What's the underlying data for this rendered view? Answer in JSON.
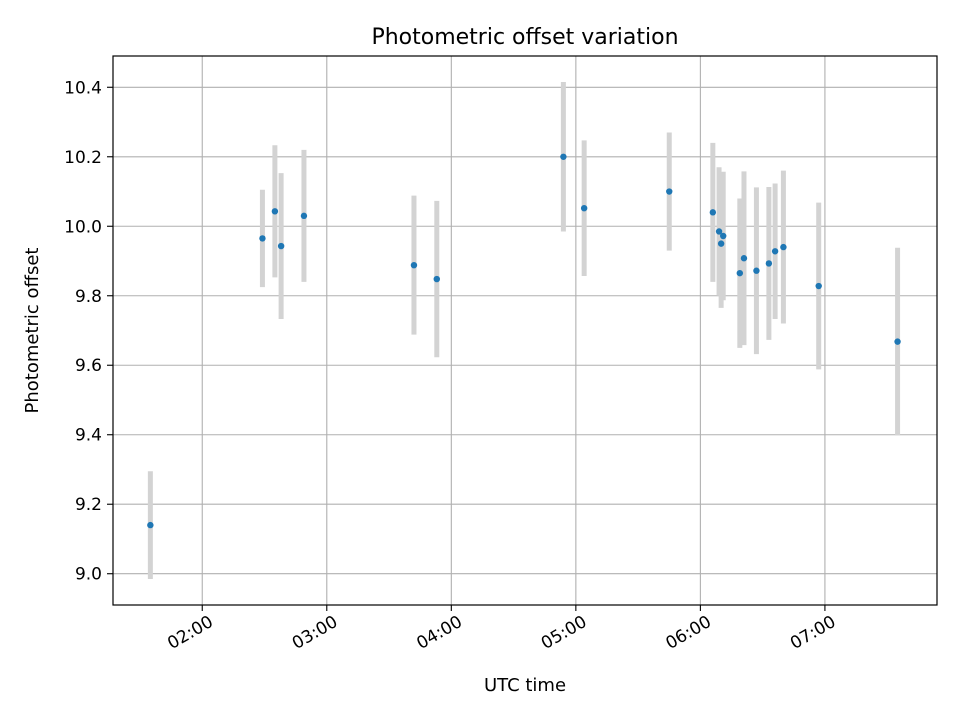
{
  "chart_data": {
    "type": "scatter",
    "title": "Photometric offset variation",
    "xlabel": "UTC time",
    "ylabel": "Photometric offset",
    "grid": true,
    "xlim": [
      "01:17",
      "07:54"
    ],
    "ylim": [
      8.91,
      10.49
    ],
    "x_ticks": [
      "02:00",
      "03:00",
      "04:00",
      "05:00",
      "06:00",
      "07:00"
    ],
    "y_ticks": [
      9.0,
      9.2,
      9.4,
      9.6,
      9.8,
      10.0,
      10.2,
      10.4
    ],
    "marker_color": "#1f77b4",
    "errorbar_color": "#d3d3d3",
    "points": [
      {
        "x": "01:35",
        "y": 9.14,
        "err": 0.155
      },
      {
        "x": "02:29",
        "y": 9.965,
        "err": 0.14
      },
      {
        "x": "02:35",
        "y": 10.043,
        "err": 0.19
      },
      {
        "x": "02:38",
        "y": 9.943,
        "err": 0.21
      },
      {
        "x": "02:49",
        "y": 10.03,
        "err": 0.19
      },
      {
        "x": "03:42",
        "y": 9.888,
        "err": 0.2
      },
      {
        "x": "03:53",
        "y": 9.848,
        "err": 0.225
      },
      {
        "x": "04:54",
        "y": 10.2,
        "err": 0.215
      },
      {
        "x": "05:04",
        "y": 10.052,
        "err": 0.195
      },
      {
        "x": "05:45",
        "y": 10.1,
        "err": 0.17
      },
      {
        "x": "06:06",
        "y": 10.04,
        "err": 0.2
      },
      {
        "x": "06:09",
        "y": 9.985,
        "err": 0.185
      },
      {
        "x": "06:10",
        "y": 9.95,
        "err": 0.185
      },
      {
        "x": "06:11",
        "y": 9.972,
        "err": 0.185
      },
      {
        "x": "06:19",
        "y": 9.865,
        "err": 0.215
      },
      {
        "x": "06:21",
        "y": 9.908,
        "err": 0.25
      },
      {
        "x": "06:27",
        "y": 9.872,
        "err": 0.24
      },
      {
        "x": "06:33",
        "y": 9.893,
        "err": 0.22
      },
      {
        "x": "06:36",
        "y": 9.928,
        "err": 0.195
      },
      {
        "x": "06:40",
        "y": 9.94,
        "err": 0.22
      },
      {
        "x": "06:57",
        "y": 9.828,
        "err": 0.24
      },
      {
        "x": "07:35",
        "y": 9.668,
        "err": 0.27
      }
    ]
  }
}
